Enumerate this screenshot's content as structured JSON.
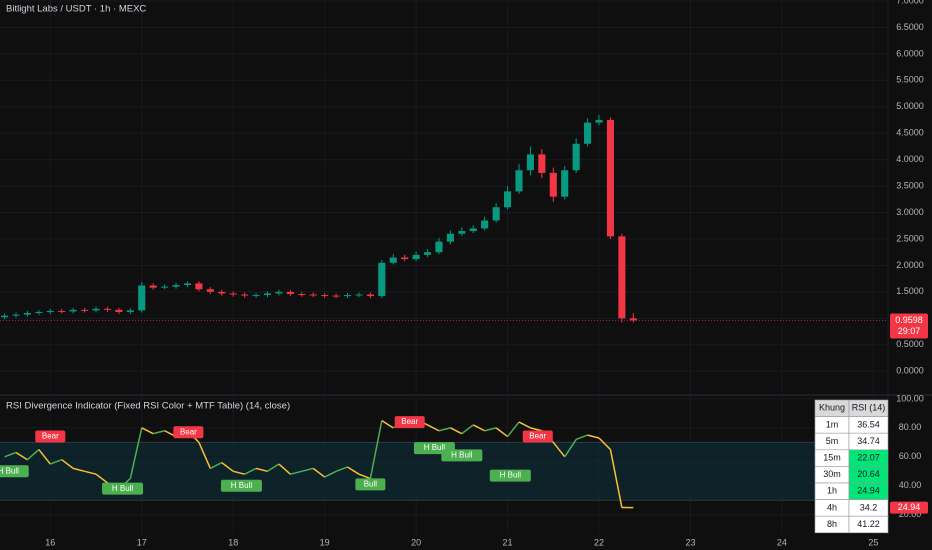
{
  "chart_data": [
    {
      "type": "candlestick",
      "title": "Bitlight Labs / USDT · 1h · MEXC",
      "x": [
        15.5,
        15.625,
        15.75,
        15.875,
        16.0,
        16.125,
        16.25,
        16.375,
        16.5,
        16.625,
        16.75,
        16.875,
        17.0,
        17.125,
        17.25,
        17.375,
        17.5,
        17.625,
        17.75,
        17.875,
        18.0,
        18.125,
        18.25,
        18.375,
        18.5,
        18.625,
        18.75,
        18.875,
        19.0,
        19.125,
        19.25,
        19.375,
        19.5,
        19.625,
        19.75,
        19.875,
        20.0,
        20.125,
        20.25,
        20.375,
        20.5,
        20.625,
        20.75,
        20.875,
        21.0,
        21.125,
        21.25,
        21.375,
        21.5,
        21.625,
        21.75,
        21.875,
        22.0,
        22.125,
        22.25,
        22.375
      ],
      "open": [
        1.02,
        1.05,
        1.07,
        1.1,
        1.12,
        1.14,
        1.13,
        1.16,
        1.15,
        1.18,
        1.16,
        1.12,
        1.15,
        1.62,
        1.58,
        1.6,
        1.63,
        1.66,
        1.55,
        1.5,
        1.47,
        1.45,
        1.43,
        1.44,
        1.47,
        1.5,
        1.46,
        1.45,
        1.44,
        1.43,
        1.42,
        1.44,
        1.45,
        1.42,
        2.05,
        2.15,
        2.12,
        2.2,
        2.25,
        2.45,
        2.6,
        2.65,
        2.7,
        2.85,
        3.1,
        3.4,
        3.8,
        4.1,
        3.75,
        3.3,
        3.8,
        4.3,
        4.7,
        4.75,
        2.55,
        1.0
      ],
      "high": [
        1.09,
        1.11,
        1.14,
        1.16,
        1.18,
        1.18,
        1.2,
        1.2,
        1.22,
        1.22,
        1.2,
        1.19,
        1.68,
        1.66,
        1.64,
        1.67,
        1.7,
        1.7,
        1.59,
        1.54,
        1.51,
        1.49,
        1.48,
        1.51,
        1.54,
        1.54,
        1.5,
        1.49,
        1.48,
        1.47,
        1.48,
        1.49,
        1.49,
        2.1,
        2.22,
        2.2,
        2.26,
        2.31,
        2.52,
        2.66,
        2.72,
        2.76,
        2.92,
        3.18,
        3.5,
        3.92,
        4.25,
        4.2,
        3.85,
        3.88,
        4.4,
        4.78,
        4.85,
        4.8,
        2.6,
        1.1
      ],
      "low": [
        0.98,
        1.01,
        1.03,
        1.06,
        1.08,
        1.09,
        1.09,
        1.11,
        1.11,
        1.12,
        1.08,
        1.08,
        1.11,
        1.54,
        1.55,
        1.56,
        1.59,
        1.51,
        1.46,
        1.43,
        1.41,
        1.39,
        1.39,
        1.4,
        1.43,
        1.42,
        1.41,
        1.4,
        1.39,
        1.38,
        1.38,
        1.4,
        1.38,
        1.38,
        2.02,
        2.08,
        2.08,
        2.16,
        2.21,
        2.4,
        2.56,
        2.61,
        2.66,
        2.81,
        3.06,
        3.35,
        3.7,
        3.65,
        3.2,
        3.25,
        3.75,
        4.25,
        4.65,
        2.5,
        0.92,
        0.92
      ],
      "close": [
        1.05,
        1.07,
        1.1,
        1.12,
        1.14,
        1.13,
        1.16,
        1.15,
        1.18,
        1.16,
        1.12,
        1.15,
        1.62,
        1.58,
        1.6,
        1.63,
        1.66,
        1.55,
        1.5,
        1.47,
        1.45,
        1.43,
        1.44,
        1.47,
        1.5,
        1.46,
        1.45,
        1.44,
        1.43,
        1.42,
        1.44,
        1.45,
        1.42,
        2.05,
        2.15,
        2.12,
        2.2,
        2.25,
        2.45,
        2.6,
        2.65,
        2.7,
        2.85,
        3.1,
        3.4,
        3.8,
        4.1,
        3.75,
        3.3,
        3.8,
        4.3,
        4.7,
        4.75,
        2.55,
        1.0,
        0.9598
      ],
      "up_color": "#089981",
      "down_color": "#f23645",
      "countdown": "29:07",
      "xlim": [
        15.45,
        25.16
      ],
      "ylim": [
        -0.45,
        7.0
      ],
      "xticks": [
        16,
        17,
        18,
        19,
        20,
        21,
        22,
        23,
        24,
        25
      ],
      "yticks": [
        {
          "value": 0,
          "label": "0.0000"
        },
        {
          "value": 0.5,
          "label": "0.5000"
        },
        {
          "value": 1,
          "label": "1.0000"
        },
        {
          "value": 1.5,
          "label": "1.5000"
        },
        {
          "value": 2,
          "label": "2.0000"
        },
        {
          "value": 2.5,
          "label": "2.5000"
        },
        {
          "value": 3,
          "label": "3.0000"
        },
        {
          "value": 3.5,
          "label": "3.5000"
        },
        {
          "value": 4,
          "label": "4.0000"
        },
        {
          "value": 4.5,
          "label": "4.5000"
        },
        {
          "value": 5,
          "label": "5.0000"
        },
        {
          "value": 5.5,
          "label": "5.5000"
        },
        {
          "value": 6,
          "label": "6.0000"
        },
        {
          "value": 6.5,
          "label": "6.5000"
        },
        {
          "value": 7,
          "label": "7.0000"
        }
      ]
    },
    {
      "type": "line",
      "title": "RSI Divergence Indicator (Fixed RSI Color + MTF Table) (14, close)",
      "values": [
        60,
        63,
        58,
        65,
        55,
        58,
        52,
        50,
        48,
        42,
        38,
        45,
        80,
        76,
        78,
        74,
        78,
        70,
        52,
        56,
        50,
        48,
        52,
        50,
        55,
        48,
        50,
        52,
        46,
        50,
        53,
        48,
        45,
        85,
        80,
        84,
        86,
        82,
        78,
        80,
        76,
        82,
        78,
        80,
        74,
        84,
        80,
        78,
        70,
        60,
        72,
        75,
        73,
        65,
        25,
        24.94
      ],
      "rise_color": "#4caf50",
      "fall_color": "#fbc02d",
      "band": [
        30,
        70
      ],
      "ylim": [
        6,
        102
      ],
      "yticks": [
        {
          "value": 20,
          "label": "20.00"
        },
        {
          "value": 40,
          "label": "40.00"
        },
        {
          "value": 60,
          "label": "60.00"
        },
        {
          "value": 80,
          "label": "80.00"
        },
        {
          "value": 100,
          "label": "100.00"
        }
      ],
      "annotations": [
        {
          "text": "H Bull",
          "x": 15.54,
          "y": 50,
          "color": "#4caf50"
        },
        {
          "text": "Bear",
          "x": 16.0,
          "y": 74,
          "color": "#f23645"
        },
        {
          "text": "H Bull",
          "x": 16.79,
          "y": 38,
          "color": "#4caf50"
        },
        {
          "text": "Bear",
          "x": 17.51,
          "y": 77,
          "color": "#f23645"
        },
        {
          "text": "H Bull",
          "x": 18.09,
          "y": 40,
          "color": "#4caf50"
        },
        {
          "text": "Bull",
          "x": 19.5,
          "y": 41,
          "color": "#4caf50"
        },
        {
          "text": "Bear",
          "x": 19.93,
          "y": 84,
          "color": "#f23645"
        },
        {
          "text": "H Bull",
          "x": 20.2,
          "y": 66,
          "color": "#4caf50"
        },
        {
          "text": "H Bull",
          "x": 20.5,
          "y": 61,
          "color": "#4caf50"
        },
        {
          "text": "H Bull",
          "x": 21.03,
          "y": 47,
          "color": "#4caf50"
        },
        {
          "text": "Bear",
          "x": 21.33,
          "y": 74,
          "color": "#f23645"
        }
      ],
      "table": {
        "header": [
          "Khung",
          "RSI (14)"
        ],
        "rows": [
          {
            "tf": "1m",
            "rsi": "36.54",
            "color": "#ffffff"
          },
          {
            "tf": "5m",
            "rsi": "34.74",
            "color": "#ffffff"
          },
          {
            "tf": "15m",
            "rsi": "22.07",
            "color": "#00e676"
          },
          {
            "tf": "30m",
            "rsi": "20.64",
            "color": "#00e676"
          },
          {
            "tf": "1h",
            "rsi": "24.94",
            "color": "#00e676"
          },
          {
            "tf": "4h",
            "rsi": "34.2",
            "color": "#ffffff"
          },
          {
            "tf": "8h",
            "rsi": "41.22",
            "color": "#ffffff"
          }
        ]
      }
    }
  ]
}
